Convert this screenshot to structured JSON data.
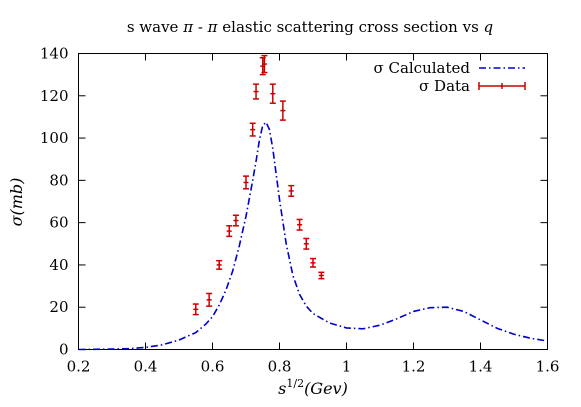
{
  "chart_data": {
    "type": "line",
    "title": {
      "prefix": "s wave ",
      "pi1": "π",
      "mid": " - ",
      "pi2": "π",
      "suffix": " elastic scattering cross section vs ",
      "var": "q"
    },
    "xlabel": {
      "base": "s",
      "sup": "1/2",
      "rest": "(Gev)"
    },
    "ylabel": "σ(mb)",
    "xlim": [
      0.2,
      1.6
    ],
    "ylim": [
      0,
      140
    ],
    "xticks": [
      {
        "value": 0.2,
        "label": "0.2"
      },
      {
        "value": 0.4,
        "label": "0.4"
      },
      {
        "value": 0.6,
        "label": "0.6"
      },
      {
        "value": 0.8,
        "label": "0.8"
      },
      {
        "value": 1.0,
        "label": "1"
      },
      {
        "value": 1.2,
        "label": "1.2"
      },
      {
        "value": 1.4,
        "label": "1.4"
      },
      {
        "value": 1.6,
        "label": "1.6"
      }
    ],
    "yticks": [
      {
        "value": 0,
        "label": "0"
      },
      {
        "value": 20,
        "label": "20"
      },
      {
        "value": 40,
        "label": "40"
      },
      {
        "value": 60,
        "label": "60"
      },
      {
        "value": 80,
        "label": "80"
      },
      {
        "value": 100,
        "label": "100"
      },
      {
        "value": 120,
        "label": "120"
      },
      {
        "value": 140,
        "label": "140"
      }
    ],
    "grid": false,
    "legend_position": "top-right",
    "series": [
      {
        "name": "σ Calculated",
        "type": "line",
        "style": "dash-dot",
        "color": "#0000cc",
        "x": [
          0.2,
          0.25,
          0.3,
          0.35,
          0.4,
          0.45,
          0.5,
          0.55,
          0.58,
          0.6,
          0.62,
          0.64,
          0.66,
          0.68,
          0.7,
          0.72,
          0.73,
          0.74,
          0.75,
          0.76,
          0.77,
          0.78,
          0.79,
          0.8,
          0.82,
          0.84,
          0.86,
          0.88,
          0.9,
          0.95,
          1.0,
          1.05,
          1.1,
          1.15,
          1.2,
          1.25,
          1.3,
          1.35,
          1.4,
          1.45,
          1.5,
          1.55,
          1.6
        ],
        "y": [
          0,
          0.1,
          0.2,
          0.4,
          1.0,
          2.2,
          4.5,
          8,
          12,
          15.5,
          21,
          28,
          37,
          49,
          63,
          80,
          89,
          99,
          106,
          107.5,
          104,
          95,
          83,
          71,
          50,
          35,
          26,
          20.5,
          17,
          12.5,
          10.2,
          9.8,
          11.5,
          14.5,
          18,
          19.8,
          20,
          18,
          14,
          10,
          7.2,
          5.3,
          4
        ]
      },
      {
        "name": "σ Data",
        "type": "errorbar",
        "color": "#cc0000",
        "points": [
          {
            "x": 0.55,
            "y": 19,
            "err": 2.5
          },
          {
            "x": 0.59,
            "y": 23.5,
            "err": 3
          },
          {
            "x": 0.62,
            "y": 40,
            "err": 2
          },
          {
            "x": 0.65,
            "y": 56,
            "err": 2.5
          },
          {
            "x": 0.67,
            "y": 61,
            "err": 2.5
          },
          {
            "x": 0.7,
            "y": 79,
            "err": 3
          },
          {
            "x": 0.72,
            "y": 104,
            "err": 3
          },
          {
            "x": 0.73,
            "y": 122,
            "err": 3.5
          },
          {
            "x": 0.75,
            "y": 134,
            "err": 4
          },
          {
            "x": 0.755,
            "y": 135,
            "err": 4
          },
          {
            "x": 0.78,
            "y": 121,
            "err": 4.5
          },
          {
            "x": 0.81,
            "y": 113,
            "err": 4.5
          },
          {
            "x": 0.835,
            "y": 75,
            "err": 2.5
          },
          {
            "x": 0.86,
            "y": 59,
            "err": 2.5
          },
          {
            "x": 0.88,
            "y": 50,
            "err": 2.5
          },
          {
            "x": 0.9,
            "y": 41,
            "err": 2
          },
          {
            "x": 0.925,
            "y": 35,
            "err": 1.5
          }
        ]
      }
    ]
  }
}
